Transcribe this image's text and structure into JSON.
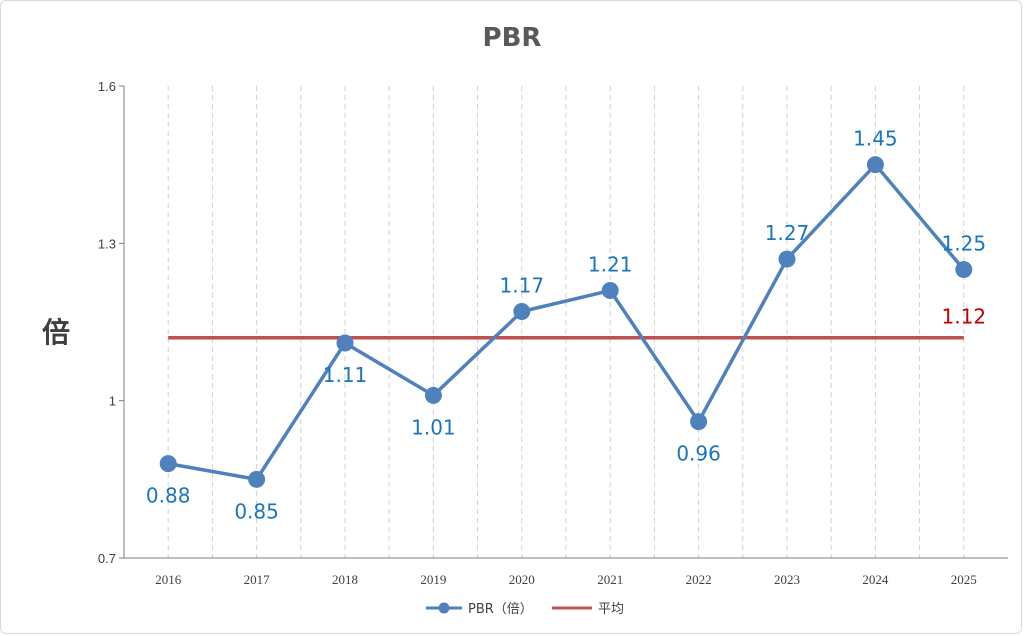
{
  "chart_data": {
    "type": "line",
    "title": "PBR",
    "ylabel": "倍",
    "xlabel": "",
    "categories": [
      "2016",
      "2017",
      "2018",
      "2019",
      "2020",
      "2021",
      "2022",
      "2023",
      "2024",
      "2025"
    ],
    "ylim": [
      0.7,
      1.6
    ],
    "yticks": [
      "0.7",
      "1",
      "1.3",
      "1.6"
    ],
    "ytick_values": [
      0.7,
      1.0,
      1.3,
      1.6
    ],
    "series": [
      {
        "name": "PBR（倍）",
        "color": "#4f81bd",
        "label_color": "#1a75bc",
        "values": [
          0.88,
          0.85,
          1.11,
          1.01,
          1.17,
          1.21,
          0.96,
          1.27,
          1.45,
          1.25
        ],
        "labels": [
          "0.88",
          "0.85",
          "1.11",
          "1.01",
          "1.17",
          "1.21",
          "0.96",
          "1.27",
          "1.45",
          "1.25"
        ],
        "label_positions": [
          "below",
          "below",
          "below",
          "below",
          "above",
          "above",
          "below",
          "above",
          "above",
          "above"
        ]
      },
      {
        "name": "平均",
        "color": "#c0504d",
        "label_color": "#c00000",
        "values": [
          1.12,
          1.12,
          1.12,
          1.12,
          1.12,
          1.12,
          1.12,
          1.12,
          1.12,
          1.12
        ],
        "end_label": "1.12"
      }
    ],
    "grid": "vertical dashed",
    "legend_position": "bottom"
  }
}
